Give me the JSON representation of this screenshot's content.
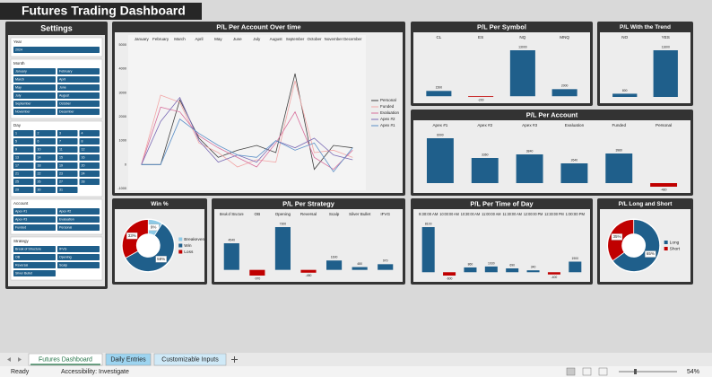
{
  "title": "Futures Trading Dashboard",
  "settings": {
    "title": "Settings",
    "slicers": [
      {
        "name": "Year",
        "items": [
          "2024"
        ]
      },
      {
        "name": "Month",
        "items": [
          "January",
          "February",
          "March",
          "April",
          "May",
          "June",
          "July",
          "August",
          "September",
          "October",
          "November",
          "December"
        ]
      },
      {
        "name": "Day",
        "items": [
          "1",
          "2",
          "3",
          "4",
          "5",
          "6",
          "7",
          "8",
          "9",
          "10",
          "11",
          "12",
          "13",
          "14",
          "15",
          "16",
          "17",
          "18",
          "19",
          "20",
          "21",
          "22",
          "23",
          "24",
          "25",
          "26",
          "27",
          "28",
          "29",
          "30",
          "31"
        ]
      },
      {
        "name": "Account",
        "items": [
          "Apex #1",
          "Apex #2",
          "Apex #3",
          "Evaluation",
          "Funded",
          "Personal"
        ]
      },
      {
        "name": "Strategy",
        "items": [
          "Break of Structure",
          "IFVG",
          "OB",
          "Opening",
          "Reversal",
          "Scalp",
          "Silver Bullet"
        ]
      }
    ]
  },
  "chart_data": [
    {
      "type": "line",
      "title": "P/L Per Account Over time",
      "categories": [
        "January",
        "February",
        "March",
        "April",
        "May",
        "June",
        "July",
        "August",
        "September",
        "October",
        "November",
        "December"
      ],
      "series": [
        {
          "name": "Personal",
          "color": "#404040",
          "values": [
            0,
            0,
            2700,
            1100,
            300,
            600,
            800,
            500,
            3800,
            -200,
            800,
            700
          ]
        },
        {
          "name": "Funded",
          "color": "#f2a7a7",
          "values": [
            0,
            2900,
            2600,
            900,
            500,
            -100,
            200,
            100,
            3500,
            500,
            600,
            300
          ]
        },
        {
          "name": "Evaluation",
          "color": "#d86f9b",
          "values": [
            0,
            2400,
            2200,
            1200,
            700,
            300,
            -100,
            900,
            2200,
            300,
            -200,
            600
          ]
        },
        {
          "name": "Apex #2",
          "color": "#7b6bb5",
          "values": [
            0,
            1800,
            2800,
            1000,
            100,
            400,
            100,
            1000,
            700,
            1100,
            400,
            200
          ]
        },
        {
          "name": "Apex #1",
          "color": "#5b8fc7",
          "values": [
            0,
            0,
            1900,
            1300,
            800,
            400,
            300,
            1000,
            600,
            900,
            -300,
            700
          ]
        }
      ],
      "ylim": [
        -1000,
        5000
      ],
      "yticks": [
        5000,
        4000,
        3000,
        2000,
        1000,
        0,
        -1000
      ],
      "grid": false,
      "legend": "right"
    },
    {
      "type": "bar",
      "title": "P/L Per Symbol",
      "categories": [
        "CL",
        "ES",
        "NQ",
        "MNQ"
      ],
      "values": [
        1500,
        -200,
        13000,
        2000
      ],
      "color": "#1f5f8b",
      "negative_color": "#c00000"
    },
    {
      "type": "bar",
      "title": "P/L With the Trend",
      "categories": [
        "NO",
        "YES"
      ],
      "values": [
        800,
        11600
      ],
      "color": "#1f5f8b",
      "negative_color": "#c00000"
    },
    {
      "type": "bar",
      "title": "P/L Per Account",
      "categories": [
        "Apex #1",
        "Apex #2",
        "Apex #3",
        "Evaluation",
        "Funded",
        "Personal"
      ],
      "values": [
        6000,
        3360,
        3840,
        2640,
        3960,
        -480
      ],
      "color": "#1f5f8b",
      "negative_color": "#c00000"
    },
    {
      "type": "pie",
      "title": "Win %",
      "categories": [
        "Breakeven",
        "Win",
        "Loss"
      ],
      "values": [
        9,
        58,
        33
      ],
      "value_labels": [
        "9%",
        "58%",
        "33%"
      ],
      "colors": [
        "#8ecae6",
        "#1f5f8b",
        "#c00000"
      ],
      "legend": "right"
    },
    {
      "type": "bar",
      "title": "P/L Per Strategy",
      "categories": [
        "Break of Structure",
        "OB",
        "Opening",
        "Reversal",
        "Scalp",
        "Silver Bullet",
        "IFVG"
      ],
      "values": [
        4540,
        -970,
        7300,
        -480,
        1600,
        480,
        970
      ],
      "color": "#1f5f8b",
      "negative_color": "#c00000"
    },
    {
      "type": "bar",
      "title": "P/L Per Time of Day",
      "categories": [
        "9:30:00 AM",
        "10:00:00 AM",
        "10:30:00 AM",
        "11:00:00 AM",
        "11:30:00 AM",
        "12:00:00 PM",
        "12:30:00 PM",
        "1:00:00 PM"
      ],
      "values": [
        8100,
        -600,
        860,
        1030,
        690,
        340,
        -400,
        1900
      ],
      "color": "#1f5f8b",
      "negative_color": "#c00000"
    },
    {
      "type": "pie",
      "title": "P/L Long and Short",
      "categories": [
        "Long",
        "Short"
      ],
      "values": [
        65,
        35
      ],
      "value_labels": [
        "65%",
        "35%"
      ],
      "colors": [
        "#1f5f8b",
        "#c00000"
      ],
      "legend": "right"
    }
  ],
  "tabs": [
    "Futures Dashboard",
    "Daily Entries",
    "Customizable Inputs"
  ],
  "status_bar": {
    "ready": "Ready",
    "accessibility": "Accessibility: Investigate",
    "zoom": "54%"
  }
}
